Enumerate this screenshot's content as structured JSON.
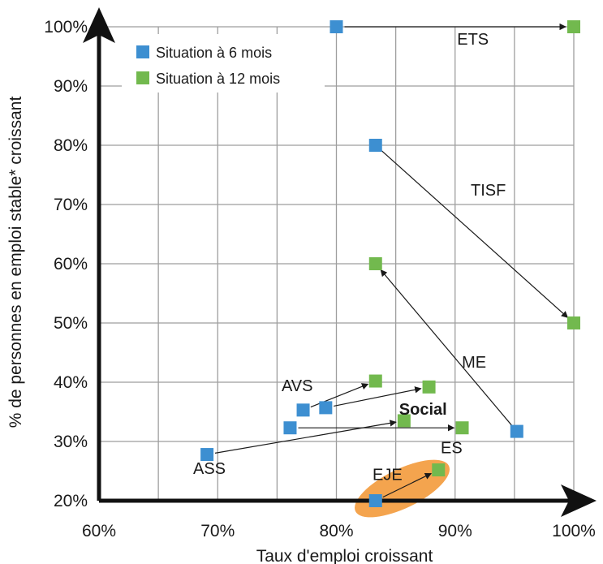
{
  "chart_data": {
    "type": "scatter",
    "xlabel": "Taux d'emploi croissant",
    "ylabel": "% de personnes en emploi stable* croissant",
    "xlim": [
      60,
      100
    ],
    "ylim": [
      20,
      100
    ],
    "x_ticks": [
      "60%",
      "70%",
      "80%",
      "90%",
      "100%"
    ],
    "y_ticks": [
      "20%",
      "30%",
      "40%",
      "50%",
      "60%",
      "70%",
      "80%",
      "90%",
      "100%"
    ],
    "grid": true,
    "legend_position": "top-left",
    "series": [
      {
        "name": "Situation à 6 mois",
        "color": "#3d8fd1",
        "points": [
          {
            "label": "ETS",
            "x": 80,
            "y": 100
          },
          {
            "label": "TISF",
            "x": 83.3,
            "y": 80
          },
          {
            "label": "ME",
            "x": 95.2,
            "y": 31.7
          },
          {
            "label": "AVS",
            "x": 77.2,
            "y": 35.3
          },
          {
            "label": "Social",
            "x": 79.1,
            "y": 35.7
          },
          {
            "label": "ES",
            "x": 76.1,
            "y": 32.3
          },
          {
            "label": "ASS",
            "x": 69.1,
            "y": 27.8
          },
          {
            "label": "EJE",
            "x": 83.3,
            "y": 20
          }
        ]
      },
      {
        "name": "Situation à 12 mois",
        "color": "#72b94e",
        "points": [
          {
            "label": "ETS",
            "x": 100,
            "y": 100
          },
          {
            "label": "TISF",
            "x": 100,
            "y": 50
          },
          {
            "label": "ME",
            "x": 83.3,
            "y": 60
          },
          {
            "label": "AVS",
            "x": 83.3,
            "y": 40.2
          },
          {
            "label": "Social",
            "x": 87.8,
            "y": 39.2
          },
          {
            "label": "ES",
            "x": 90.6,
            "y": 32.3
          },
          {
            "label": "ASS",
            "x": 85.7,
            "y": 33.5
          },
          {
            "label": "EJE",
            "x": 88.6,
            "y": 25.2
          }
        ]
      }
    ],
    "annotations": [
      {
        "text": "ETS",
        "x": 91.5,
        "y": 97,
        "bold": false
      },
      {
        "text": "TISF",
        "x": 92.8,
        "y": 71.5,
        "bold": false
      },
      {
        "text": "ME",
        "x": 91.6,
        "y": 42.5,
        "bold": false
      },
      {
        "text": "AVS",
        "x": 76.7,
        "y": 38.5,
        "bold": false
      },
      {
        "text": "Social",
        "x": 87.3,
        "y": 34.5,
        "bold": true
      },
      {
        "text": "ES",
        "x": 89.7,
        "y": 28,
        "bold": false
      },
      {
        "text": "ASS",
        "x": 69.3,
        "y": 24.5,
        "bold": false
      },
      {
        "text": "EJE",
        "x": 84.3,
        "y": 23.5,
        "bold": false
      }
    ],
    "highlight": {
      "label": "EJE",
      "color": "#f4a44e"
    }
  }
}
